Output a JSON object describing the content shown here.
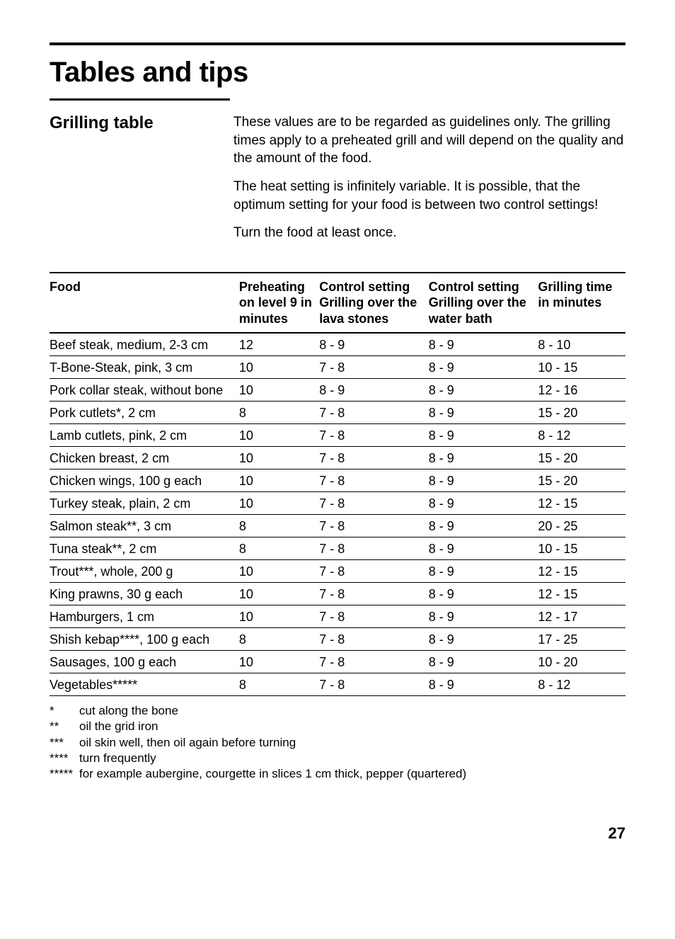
{
  "page_title": "Tables and tips",
  "section": {
    "heading": "Grilling table",
    "paragraphs": [
      "These values are to be regarded as guidelines only. The grilling times apply to a preheated grill and will depend on the quality and the amount of the food.",
      "The heat setting is infinitely variable. It is possible, that the optimum setting for your food is between two control settings!",
      "Turn the food at least once."
    ]
  },
  "table": {
    "columns": [
      "Food",
      "Preheating on level 9 in minutes",
      "Control setting Grilling over the lava stones",
      "Control setting Grilling over the water bath",
      "Grilling time in minutes"
    ],
    "rows": [
      {
        "food": "Beef steak, medium, 2-3 cm",
        "preheat": "12",
        "lava": "8 - 9",
        "water": "8 - 9",
        "time": "8 - 10"
      },
      {
        "food": "T-Bone-Steak, pink, 3 cm",
        "preheat": "10",
        "lava": "7 - 8",
        "water": "8 - 9",
        "time": "10 - 15"
      },
      {
        "food": "Pork collar steak, without bone",
        "preheat": "10",
        "lava": "8 - 9",
        "water": "8 - 9",
        "time": "12 - 16"
      },
      {
        "food": "Pork cutlets*, 2 cm",
        "preheat": "8",
        "lava": "7 - 8",
        "water": "8 - 9",
        "time": "15 - 20"
      },
      {
        "food": "Lamb cutlets, pink, 2 cm",
        "preheat": "10",
        "lava": "7 - 8",
        "water": "8 - 9",
        "time": "8 - 12"
      },
      {
        "food": "Chicken breast, 2 cm",
        "preheat": "10",
        "lava": "7 - 8",
        "water": "8 - 9",
        "time": "15 - 20"
      },
      {
        "food": "Chicken wings, 100 g each",
        "preheat": "10",
        "lava": "7 - 8",
        "water": "8 - 9",
        "time": "15 - 20"
      },
      {
        "food": "Turkey steak, plain, 2 cm",
        "preheat": "10",
        "lava": "7 - 8",
        "water": "8 - 9",
        "time": "12 - 15"
      },
      {
        "food": "Salmon steak**, 3 cm",
        "preheat": "8",
        "lava": "7 - 8",
        "water": "8 - 9",
        "time": "20 - 25"
      },
      {
        "food": "Tuna steak**, 2 cm",
        "preheat": "8",
        "lava": "7 - 8",
        "water": "8 - 9",
        "time": "10 - 15"
      },
      {
        "food": "Trout***, whole, 200 g",
        "preheat": "10",
        "lava": "7 - 8",
        "water": "8 - 9",
        "time": "12 - 15"
      },
      {
        "food": "King prawns, 30 g each",
        "preheat": "10",
        "lava": "7 - 8",
        "water": "8 - 9",
        "time": "12 - 15"
      },
      {
        "food": "Hamburgers, 1 cm",
        "preheat": "10",
        "lava": "7 - 8",
        "water": "8 - 9",
        "time": "12 - 17"
      },
      {
        "food": "Shish kebap****, 100 g each",
        "preheat": "8",
        "lava": "7 - 8",
        "water": "8 - 9",
        "time": "17 - 25"
      },
      {
        "food": "Sausages, 100 g each",
        "preheat": "10",
        "lava": "7 - 8",
        "water": "8 - 9",
        "time": "10 - 20"
      },
      {
        "food": "Vegetables*****",
        "preheat": "8",
        "lava": "7 - 8",
        "water": "8 - 9",
        "time": "8 - 12"
      }
    ]
  },
  "footnotes": [
    {
      "mark": "*",
      "text": "cut along the bone"
    },
    {
      "mark": "**",
      "text": "oil the grid iron"
    },
    {
      "mark": "***",
      "text": "oil skin well, then oil again before turning"
    },
    {
      "mark": "****",
      "text": "turn frequently"
    },
    {
      "mark": "*****",
      "text": "for example aubergine, courgette in slices 1 cm thick, pepper (quartered)"
    }
  ],
  "page_number": "27"
}
